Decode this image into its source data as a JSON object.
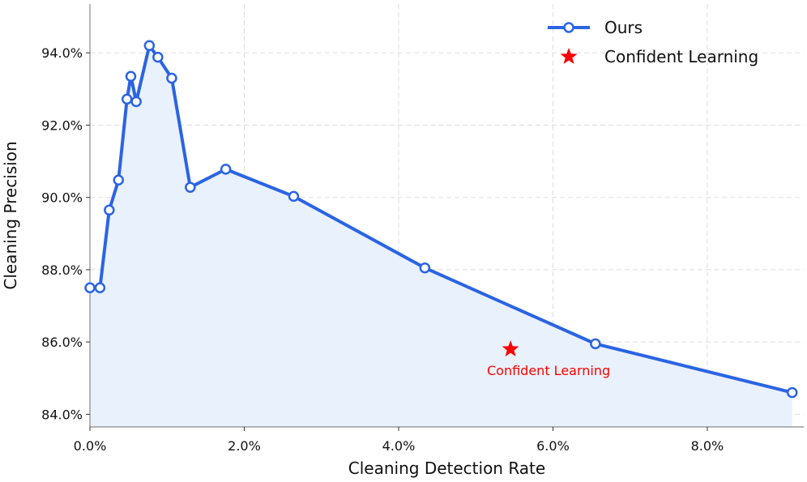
{
  "chart_data": {
    "type": "line",
    "xlabel": "Cleaning Detection Rate",
    "ylabel": "Cleaning Precision",
    "xlim": [
      0.0,
      0.0925
    ],
    "ylim": [
      0.8365,
      0.9535
    ],
    "x_ticks": [
      0.0,
      0.02,
      0.04,
      0.06,
      0.08
    ],
    "x_tick_labels": [
      "0.0%",
      "2.0%",
      "4.0%",
      "6.0%",
      "8.0%"
    ],
    "y_ticks": [
      0.84,
      0.86,
      0.88,
      0.9,
      0.92,
      0.94
    ],
    "y_tick_labels": [
      "84.0%",
      "86.0%",
      "88.0%",
      "90.0%",
      "92.0%",
      "94.0%"
    ],
    "grid": true,
    "legend_position": "top-right",
    "colors": {
      "series": "#2b64e3",
      "fill": "#e9f1fc",
      "point": "#ff0000",
      "grid": "#dddddd",
      "axis": "#888888"
    },
    "series": [
      {
        "name": "Ours",
        "x": [
          0.0,
          0.0013,
          0.0025,
          0.0037,
          0.0048,
          0.0053,
          0.006,
          0.0077,
          0.0088,
          0.0106,
          0.013,
          0.0176,
          0.0264,
          0.0434,
          0.0655,
          0.091
        ],
        "y": [
          0.875,
          0.875,
          0.8965,
          0.9048,
          0.9272,
          0.9335,
          0.9265,
          0.942,
          0.9388,
          0.933,
          0.9028,
          0.9078,
          0.9003,
          0.8805,
          0.8595,
          0.846
        ]
      }
    ],
    "points": [
      {
        "name": "Confident Learning",
        "x": 0.0545,
        "y": 0.858,
        "annotation": "Confident Learning"
      }
    ]
  }
}
